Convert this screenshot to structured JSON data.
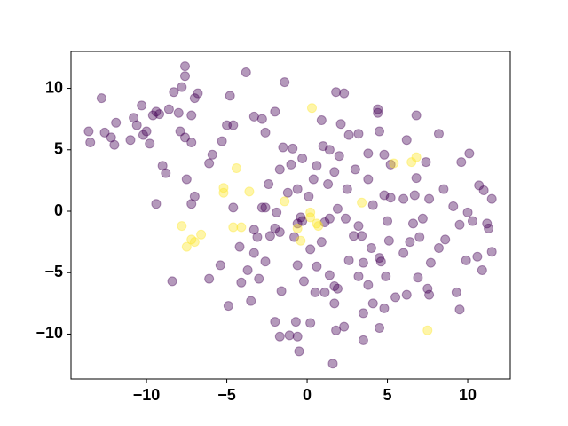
{
  "chart_data": {
    "type": "scatter",
    "xlim": [
      -14.7,
      12.65
    ],
    "ylim": [
      -13.65,
      13.0
    ],
    "xticks": [
      {
        "value": -10,
        "label": "−10"
      },
      {
        "value": -5,
        "label": "−5"
      },
      0,
      5,
      10
    ],
    "yticks": [
      {
        "value": -10,
        "label": "−10"
      },
      {
        "value": -5,
        "label": "−5"
      },
      0,
      5,
      10
    ],
    "alpha": 0.4,
    "series": [
      {
        "color": "#440154",
        "x": [
          -12.8,
          -13.6,
          -13.5,
          -12.6,
          -12.2,
          -12.0,
          -11.9,
          -11.0,
          -10.8,
          -10.6,
          -10.3,
          -10.2,
          -10.0,
          -9.8,
          -9.6,
          -9.4,
          -9.0,
          -9.2,
          -8.6,
          -8.8,
          -8.0,
          -8.3,
          -7.8,
          -7.6,
          -7.6,
          -7.2,
          -7.0,
          -6.8,
          -7.9,
          -7.6,
          -7.2,
          -7.5,
          -7.0,
          -7.2,
          -9.4,
          -8.4,
          -6.1,
          -6.1,
          -5.9,
          -5.3,
          -5.0,
          -4.8,
          -4.6,
          -3.8,
          -3.3,
          -2.8,
          -2.6,
          -2.0,
          -1.4,
          -4.6,
          -4.2,
          -3.3,
          -3.1,
          -3.3,
          -3.7,
          -3.0,
          -4.1,
          -5.4,
          -4.9,
          -3.5,
          -2.6,
          -2.3,
          -1.9,
          -2.6,
          -2.4,
          -1.7,
          -1.5,
          -1.2,
          -1.0,
          -0.9,
          -0.6,
          -0.4,
          -0.3,
          0.1,
          0.4,
          0.6,
          0.9,
          1.0,
          1.4,
          1.7,
          1.8,
          2.3,
          2.1,
          2.6,
          3.0,
          3.2,
          3.8,
          4.4,
          4.4,
          4.5,
          5.2,
          6.2,
          6.8,
          6.8,
          7.4,
          7.6,
          8.2,
          8.5,
          9.1,
          9.6,
          10.1,
          10.3,
          10.0,
          10.7,
          11.0,
          11.2,
          11.3,
          11.5,
          11.5,
          10.9,
          10.6,
          9.9,
          9.5,
          9.3,
          9.5,
          8.6,
          8.2,
          7.7,
          7.6,
          7.5,
          6.9,
          6.2,
          6.0,
          6.4,
          6.6,
          7.2,
          7.0,
          5.1,
          4.5,
          4.6,
          4.9,
          5.5,
          4.8,
          4.5,
          4.1,
          3.8,
          3.5,
          3.2,
          3.5,
          3.5,
          2.3,
          1.7,
          1.7,
          1.9,
          1.4,
          1.1,
          0.5,
          0.6,
          0.2,
          -0.2,
          -0.6,
          -0.7,
          -1.6,
          -2.0,
          -1.1,
          -0.5,
          -1.7,
          1.6,
          1.8,
          0.2,
          -0.6,
          2.6,
          2.9,
          3.4,
          4.0,
          3.2,
          2.4,
          1.9,
          1.4,
          1.1,
          1.3,
          0.9,
          -0.8,
          -1.7,
          2.5,
          4.1,
          4.8,
          5.2,
          5.0,
          6.0,
          6.7,
          3.8,
          4.8,
          2.0,
          -0.3,
          -0.6,
          -2.8,
          -2.0
        ],
        "y": [
          9.2,
          6.5,
          5.6,
          6.4,
          6.0,
          5.4,
          7.2,
          5.8,
          7.6,
          7.0,
          8.6,
          6.2,
          6.5,
          5.5,
          7.8,
          8.1,
          3.7,
          7.9,
          8.3,
          3.1,
          8.0,
          9.7,
          10.1,
          11.8,
          11.0,
          7.8,
          9.2,
          9.6,
          6.5,
          6.0,
          5.6,
          2.6,
          1.2,
          0.6,
          0.6,
          -5.7,
          3.9,
          -5.5,
          4.6,
          5.7,
          7.0,
          9.4,
          7.0,
          11.3,
          7.7,
          7.5,
          6.4,
          8.1,
          10.5,
          0.3,
          -2.9,
          -1.5,
          -2.1,
          -3.4,
          -4.8,
          -5.5,
          -5.8,
          -4.4,
          -7.7,
          -7.3,
          -4.1,
          -2.0,
          -0.1,
          0.3,
          2.2,
          3.4,
          5.2,
          1.5,
          3.8,
          5.1,
          1.8,
          -0.5,
          -0.8,
          1.2,
          2.6,
          3.7,
          7.4,
          5.3,
          5.0,
          3.2,
          9.7,
          9.6,
          7.1,
          6.2,
          3.4,
          6.3,
          4.7,
          8.0,
          8.3,
          6.5,
          3.8,
          5.8,
          7.8,
          2.7,
          4.0,
          1.0,
          6.3,
          1.8,
          0.4,
          4.0,
          4.7,
          -0.8,
          -0.1,
          2.1,
          1.7,
          -1.0,
          -1.4,
          1.0,
          -3.3,
          -4.8,
          -3.7,
          -4.0,
          -1.1,
          -6.6,
          -8.0,
          -2.3,
          -3.0,
          -4.2,
          -6.8,
          -6.3,
          -5.4,
          -6.8,
          -3.4,
          -2.5,
          -1.0,
          -0.6,
          -2.1,
          -2.4,
          -3.8,
          -4.1,
          -5.3,
          -7.0,
          -7.9,
          -9.5,
          -7.5,
          -6.0,
          -4.2,
          -5.3,
          -8.3,
          -10.5,
          -9.4,
          -7.5,
          -6.1,
          -6.3,
          -5.2,
          -6.6,
          -6.6,
          -4.5,
          -3.1,
          -5.7,
          -4.4,
          -9.0,
          -6.5,
          -9.0,
          -10.1,
          -11.4,
          -10.2,
          -12.4,
          -9.7,
          -9.1,
          -10.2,
          -4.0,
          -2.0,
          -2.0,
          -3.0,
          -1.2,
          -0.6,
          0.2,
          -0.6,
          -0.9,
          2.2,
          -2.5,
          -2.1,
          -1.7,
          1.8,
          0.5,
          1.3,
          1.1,
          -0.8,
          1.0,
          1.3,
          2.6,
          4.6,
          4.5,
          4.3,
          -1.0,
          0.3,
          -1.4
        ]
      },
      {
        "color": "#fde725",
        "x": [
          0.3,
          5.4,
          6.8,
          6.5,
          -4.4,
          -5.2,
          -5.2,
          -3.6,
          -1.4,
          0.2,
          0.2,
          0.6,
          0.7,
          -0.6,
          -0.4,
          -7.8,
          -7.2,
          -7.5,
          -7.0,
          -6.6,
          -4.6,
          3.4,
          7.5,
          -4.1
        ],
        "y": [
          8.4,
          3.9,
          4.4,
          4.0,
          3.5,
          1.9,
          1.5,
          1.6,
          0.8,
          -0.1,
          -0.5,
          -1.0,
          -1.2,
          -1.4,
          -2.4,
          -1.2,
          -2.3,
          -2.9,
          -2.5,
          -1.9,
          -1.3,
          0.7,
          -9.7,
          -1.3
        ]
      }
    ]
  }
}
